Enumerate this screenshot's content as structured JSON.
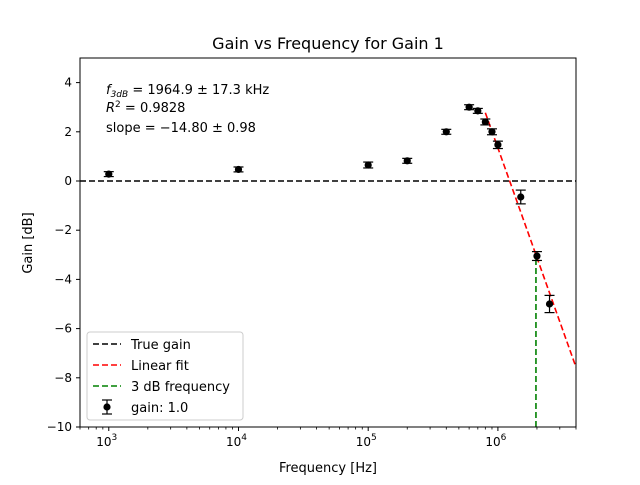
{
  "chart_data": {
    "type": "scatter",
    "title": "Gain vs Frequency for Gain 1",
    "xlabel": "Frequency [Hz]",
    "ylabel": "Gain [dB]",
    "xscale": "log",
    "xlim": [
      600,
      4000000
    ],
    "ylim": [
      -10,
      5
    ],
    "grid": false,
    "legend_position": "lower-left",
    "x_ticks": [
      {
        "value": 1000,
        "base": "10",
        "exp": "3"
      },
      {
        "value": 10000,
        "base": "10",
        "exp": "4"
      },
      {
        "value": 100000,
        "base": "10",
        "exp": "5"
      },
      {
        "value": 1000000,
        "base": "10",
        "exp": "6"
      }
    ],
    "y_ticks": [
      4,
      2,
      0,
      -2,
      -4,
      -6,
      -8,
      -10
    ],
    "y_tick_labels": [
      "4",
      "2",
      "0",
      "−2",
      "−4",
      "−6",
      "−8",
      "−10"
    ],
    "annotations": {
      "f3db": {
        "prefix": "f",
        "sub": "3dB",
        "rest": " = 1964.9 ± 17.3 kHz"
      },
      "r2": {
        "prefix": "R",
        "sup": "2",
        "rest": " = 0.9828"
      },
      "slope": "slope  = −14.80 ± 0.98"
    },
    "true_gain": {
      "y": 0,
      "color": "#000000"
    },
    "linear_fit": {
      "x_start": 800000,
      "x_end": 4000000,
      "slope_per_decade": -14.8,
      "x_ref": 1964900,
      "y_ref": -3.0,
      "color": "#ff0000"
    },
    "f3db_line": {
      "x": 1964900,
      "y_bottom": -10,
      "y_top": -3.0,
      "color": "#008000"
    },
    "series": [
      {
        "name": "gain: 1.0",
        "color": "#000000",
        "points": [
          {
            "x": 1000,
            "y": 0.28,
            "yerr": 0.1
          },
          {
            "x": 10000,
            "y": 0.47,
            "yerr": 0.1
          },
          {
            "x": 100000,
            "y": 0.65,
            "yerr": 0.12
          },
          {
            "x": 200000,
            "y": 0.82,
            "yerr": 0.1
          },
          {
            "x": 400000,
            "y": 2.0,
            "yerr": 0.1
          },
          {
            "x": 600000,
            "y": 3.0,
            "yerr": 0.1
          },
          {
            "x": 700000,
            "y": 2.85,
            "yerr": 0.1
          },
          {
            "x": 800000,
            "y": 2.4,
            "yerr": 0.12
          },
          {
            "x": 900000,
            "y": 2.0,
            "yerr": 0.12
          },
          {
            "x": 1000000,
            "y": 1.47,
            "yerr": 0.15
          },
          {
            "x": 1500000,
            "y": -0.65,
            "yerr": 0.28
          },
          {
            "x": 2000000,
            "y": -3.05,
            "yerr": 0.18
          },
          {
            "x": 2500000,
            "y": -5.0,
            "yerr": 0.35
          }
        ]
      }
    ],
    "legend": [
      {
        "label": "True gain",
        "style": "dashed",
        "color": "#000000"
      },
      {
        "label": "Linear fit",
        "style": "dashed",
        "color": "#ff0000"
      },
      {
        "label": "3 dB frequency",
        "style": "dashed",
        "color": "#008000"
      },
      {
        "label": "gain: 1.0",
        "style": "errorbar",
        "color": "#000000"
      }
    ]
  }
}
